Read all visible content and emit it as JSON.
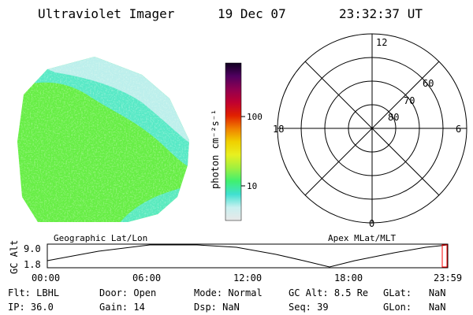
{
  "header": {
    "instrument": "Ultraviolet Imager",
    "date": "19 Dec 07",
    "time": "23:32:37 UT"
  },
  "colorbar": {
    "label": "photon cm⁻²s⁻¹",
    "ticks": [
      "100",
      "10"
    ]
  },
  "polar": {
    "mlt_labels": {
      "top": "12",
      "left": "18",
      "right": "6",
      "bottom": "0"
    },
    "lat_labels": [
      "60",
      "70",
      "80"
    ]
  },
  "captions": {
    "left": "Geographic Lat/Lon",
    "right": "Apex MLat/MLT"
  },
  "timeline": {
    "axis_label": "GC Alt",
    "y_ticks": [
      "9.0",
      "1.8"
    ],
    "x_ticks": [
      "00:00",
      "06:00",
      "12:00",
      "18:00",
      "23:59"
    ]
  },
  "footer": [
    [
      {
        "label": "Flt:",
        "value": "LBHL"
      },
      {
        "label": "Door:",
        "value": "Open"
      },
      {
        "label": "Mode:",
        "value": "Normal"
      },
      {
        "label": "GC Alt:",
        "value": "8.5 Re"
      },
      {
        "label": "GLat:",
        "value": "NaN"
      }
    ],
    [
      {
        "label": "IP:",
        "value": "36.0"
      },
      {
        "label": "Gain:",
        "value": "14"
      },
      {
        "label": "Dsp:",
        "value": "NaN"
      },
      {
        "label": "Seq:",
        "value": "39"
      },
      {
        "label": "GLon:",
        "value": "NaN"
      }
    ]
  ],
  "colors": {
    "colorbar_stops": [
      "#e8e8e8",
      "#c8f0f0",
      "#40e0d0",
      "#40f070",
      "#a0f040",
      "#e8f020",
      "#f0d000",
      "#f08000",
      "#e02000",
      "#c00030",
      "#900050",
      "#500060",
      "#100020"
    ],
    "aurora_green": "#66ee44",
    "aurora_cyan": "#55e8dd",
    "marker": "#ff0000"
  }
}
